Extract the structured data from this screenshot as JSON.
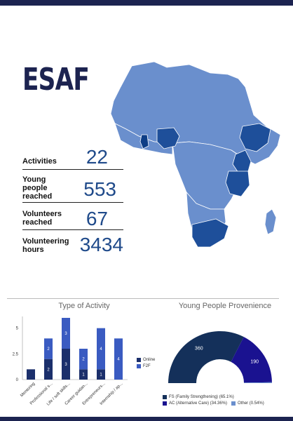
{
  "title": "ESAF",
  "stats": [
    {
      "label": "Activities",
      "value": "22"
    },
    {
      "label": "Young\npeople\nreached",
      "value": "553"
    },
    {
      "label": "Volunteers\nreached",
      "value": "67"
    },
    {
      "label": "Volunteering\nhours",
      "value": "3434"
    }
  ],
  "colors": {
    "dark": "#1c2350",
    "map_light": "#6a8fcd",
    "map_dark": "#1e4f9a",
    "online": "#1b2f6b",
    "f2f": "#3a5bc1"
  },
  "activity_chart": {
    "title": "Type of Activity",
    "legend": [
      "Online",
      "F2F"
    ],
    "chart_data": {
      "type": "bar",
      "categories": [
        "Mentoring",
        "Professional s...",
        "Life / soft skills...",
        "Career guidan...",
        "Entrepreneurs...",
        "Internship / ap..."
      ],
      "series": [
        {
          "name": "Online",
          "values": [
            1,
            2,
            3,
            1,
            1,
            0
          ]
        },
        {
          "name": "F2F",
          "values": [
            0,
            2,
            3,
            2,
            4,
            4
          ]
        }
      ],
      "yticks": [
        "0",
        "2.5",
        "5"
      ],
      "ylim": [
        0,
        6
      ]
    }
  },
  "provenience_chart": {
    "title": "Young People Provenience",
    "chart_data": {
      "type": "pie",
      "labels": [
        "FS (Family Strengthening) (65.1%)",
        "AC (Alternative Care) (34.36%)",
        "Other (0.54%)"
      ],
      "values": [
        360,
        190,
        3
      ],
      "value_labels": [
        "360",
        "190",
        ""
      ],
      "colors": [
        "#14305a",
        "#1a1290",
        "#6a8fcd"
      ]
    }
  }
}
